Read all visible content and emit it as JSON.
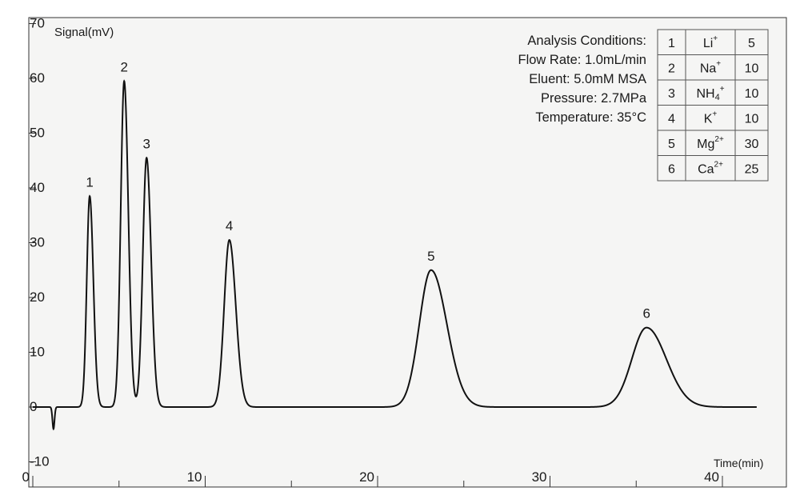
{
  "chart_data": {
    "type": "line",
    "ylabel": "Signal(mV)",
    "xlabel": "Time(min)",
    "xlim": [
      0,
      42
    ],
    "ylim": [
      -10,
      70
    ],
    "x_ticks": [
      "0",
      "10",
      "20",
      "30",
      "40"
    ],
    "y_ticks": [
      "-10",
      "0",
      "10",
      "20",
      "30",
      "40",
      "50",
      "60",
      "70"
    ],
    "grid": false,
    "baseline_mV": 0,
    "dip": {
      "time": 1.2,
      "value": -4
    },
    "peaks": [
      {
        "label": "1",
        "time": 3.3,
        "height": 38.5
      },
      {
        "label": "2",
        "time": 5.3,
        "height": 59.5
      },
      {
        "label": "3",
        "time": 6.6,
        "height": 45.5
      },
      {
        "label": "4",
        "time": 11.4,
        "height": 30.5
      },
      {
        "label": "5",
        "time": 23.1,
        "height": 25
      },
      {
        "label": "6",
        "time": 35.6,
        "height": 14.5
      }
    ],
    "conditions": {
      "title": "Analysis Conditions:",
      "lines": [
        "Flow Rate: 1.0mL/min",
        "Eluent: 5.0mM MSA",
        "Pressure: 2.7MPa",
        "Temperature: 35°C"
      ]
    },
    "table": [
      {
        "no": "1",
        "ion": "Li",
        "charge": "+",
        "sub": "",
        "conc": "5"
      },
      {
        "no": "2",
        "ion": "Na",
        "charge": "+",
        "sub": "",
        "conc": "10"
      },
      {
        "no": "3",
        "ion": "NH",
        "charge": "+",
        "sub": "4",
        "conc": "10"
      },
      {
        "no": "4",
        "ion": "K",
        "charge": "+",
        "sub": "",
        "conc": "10"
      },
      {
        "no": "5",
        "ion": "Mg",
        "charge": "2+",
        "sub": "",
        "conc": "30"
      },
      {
        "no": "6",
        "ion": "Ca",
        "charge": "2+",
        "sub": "",
        "conc": "25"
      }
    ]
  }
}
